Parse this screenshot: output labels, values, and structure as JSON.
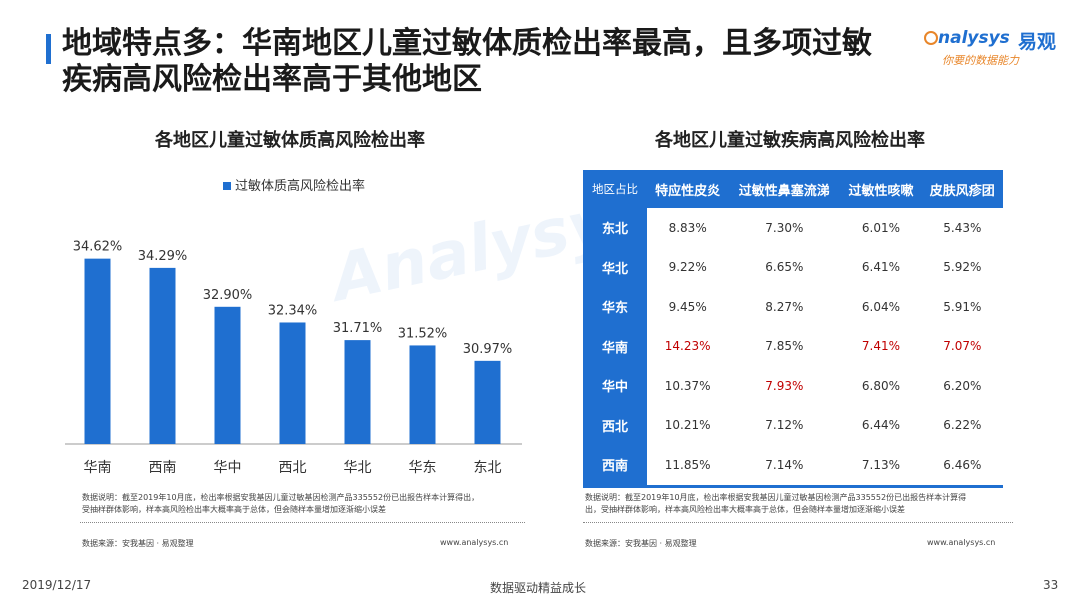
{
  "header": {
    "title_line1": "地域特点多：华南地区儿童过敏体质检出率最高，且多项过敏",
    "title_line2": "疾病高风险检出率高于其他地区",
    "logo_en": "nalysys",
    "logo_cn": "易观",
    "logo_sub": "你要的数据能力"
  },
  "left_chart": {
    "title": "各地区儿童过敏体质高风险检出率",
    "note": "数据说明：截至2019年10月底，检出率根据安我基因儿童过敏基因检测产品335552份已出报告样本计算得出，受抽样群体影响，样本高风险检出率大概率高于总体，但会随样本量增加逐渐缩小误差",
    "note_line1": "数据说明：截至2019年10月底，检出率根据安我基因儿童过敏基因检测产品335552份已出报告样本计算得出，",
    "note_line2": "受抽样群体影响，样本高风险检出率大概率高于总体，但会随样本量增加逐渐缩小误差",
    "source": "数据来源：安我基因 · 易观整理",
    "site": "www.analysys.cn"
  },
  "chart_data": {
    "type": "bar",
    "title": "各地区儿童过敏体质高风险检出率",
    "categories": [
      "华南",
      "西南",
      "华中",
      "西北",
      "华北",
      "华东",
      "东北"
    ],
    "series": [
      {
        "name": "过敏体质高风险检出率",
        "values": [
          34.62,
          34.29,
          32.9,
          32.34,
          31.71,
          31.52,
          30.97
        ]
      }
    ],
    "value_labels": [
      "34.62%",
      "34.29%",
      "32.90%",
      "32.34%",
      "31.71%",
      "31.52%",
      "30.97%"
    ],
    "color": "#1f6fd0",
    "legend_position": "top-center",
    "grid": false,
    "ylim": [
      28,
      36
    ]
  },
  "right_table": {
    "title": "各地区儿童过敏疾病高风险检出率",
    "corner": "地区占比",
    "columns": [
      "特应性皮炎",
      "过敏性鼻塞流涕",
      "过敏性咳嗽",
      "皮肤风疹团"
    ],
    "rows": [
      {
        "region": "东北",
        "values": [
          "8.83%",
          "7.30%",
          "6.01%",
          "5.43%"
        ],
        "highlight": [
          false,
          false,
          false,
          false
        ]
      },
      {
        "region": "华北",
        "values": [
          "9.22%",
          "6.65%",
          "6.41%",
          "5.92%"
        ],
        "highlight": [
          false,
          false,
          false,
          false
        ]
      },
      {
        "region": "华东",
        "values": [
          "9.45%",
          "8.27%",
          "6.04%",
          "5.91%"
        ],
        "highlight": [
          false,
          false,
          false,
          false
        ]
      },
      {
        "region": "华南",
        "values": [
          "14.23%",
          "7.85%",
          "7.41%",
          "7.07%"
        ],
        "highlight": [
          true,
          false,
          true,
          true
        ]
      },
      {
        "region": "华中",
        "values": [
          "10.37%",
          "7.93%",
          "6.80%",
          "6.20%"
        ],
        "highlight": [
          false,
          true,
          false,
          false
        ]
      },
      {
        "region": "西北",
        "values": [
          "10.21%",
          "7.12%",
          "6.44%",
          "6.22%"
        ],
        "highlight": [
          false,
          false,
          false,
          false
        ]
      },
      {
        "region": "西南",
        "values": [
          "11.85%",
          "7.14%",
          "7.13%",
          "6.46%"
        ],
        "highlight": [
          false,
          false,
          false,
          false
        ]
      }
    ],
    "header_color": "#1f6fd0",
    "highlight_color": "#c00000",
    "note_line1": "数据说明：截至2019年10月底，检出率根据安我基因儿童过敏基因检测产品335552份已出报告样本计算得",
    "note_line2": "出，受抽样群体影响，样本高风险检出率大概率高于总体，但会随样本量增加逐渐缩小误差",
    "source": "数据来源：安我基因 · 易观整理",
    "site": "www.analysys.cn"
  },
  "footer": {
    "date": "2019/12/17",
    "slogan": "数据驱动精益成长",
    "page": "33"
  }
}
